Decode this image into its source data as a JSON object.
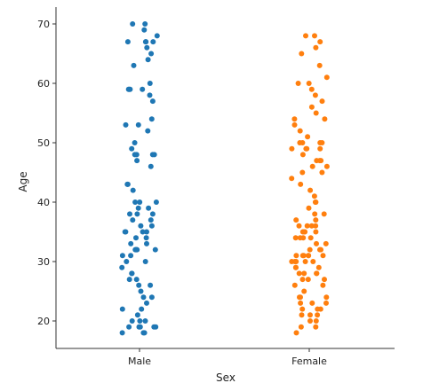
{
  "chart_data": {
    "type": "scatter",
    "title": "",
    "xlabel": "Sex",
    "ylabel": "Age",
    "categories": [
      "Male",
      "Female"
    ],
    "ylim": [
      15,
      73
    ],
    "y_ticks": [
      20,
      30,
      40,
      50,
      60,
      70
    ],
    "grid": false,
    "legend": "none",
    "series": [
      {
        "color": "#1f77b4",
        "category": "Male",
        "values": [
          70,
          70,
          69,
          68,
          67,
          67,
          67,
          67,
          66,
          65,
          64,
          63,
          60,
          59,
          59,
          59,
          59,
          58,
          57,
          54,
          53,
          53,
          52,
          50,
          49,
          48,
          48,
          48,
          48,
          47,
          46,
          43,
          43,
          42,
          40,
          40,
          40,
          39,
          39,
          38,
          38,
          38,
          37,
          37,
          36,
          36,
          35,
          35,
          35,
          35,
          34,
          34,
          33,
          33,
          32,
          32,
          32,
          32,
          32,
          31,
          31,
          30,
          30,
          29,
          28,
          28,
          27,
          27,
          26,
          26,
          25,
          24,
          24,
          23,
          22,
          22,
          21,
          20,
          20,
          20,
          19,
          19,
          19,
          19,
          19,
          18,
          18,
          18
        ]
      },
      {
        "color": "#ff7f0e",
        "category": "Female",
        "values": [
          68,
          68,
          67,
          66,
          65,
          63,
          61,
          60,
          60,
          59,
          58,
          57,
          56,
          55,
          54,
          54,
          53,
          52,
          51,
          50,
          50,
          50,
          50,
          49,
          49,
          49,
          49,
          48,
          47,
          47,
          47,
          46,
          46,
          45,
          45,
          44,
          43,
          42,
          41,
          40,
          40,
          39,
          38,
          38,
          37,
          37,
          36,
          36,
          36,
          36,
          35,
          35,
          35,
          35,
          34,
          34,
          34,
          34,
          33,
          33,
          32,
          32,
          32,
          31,
          31,
          31,
          31,
          31,
          31,
          30,
          30,
          30,
          30,
          30,
          29,
          29,
          29,
          28,
          28,
          28,
          28,
          27,
          27,
          27,
          26,
          26,
          25,
          24,
          24,
          24,
          23,
          23,
          23,
          22,
          22,
          22,
          21,
          21,
          21,
          20,
          20,
          19,
          19,
          18
        ]
      }
    ]
  }
}
